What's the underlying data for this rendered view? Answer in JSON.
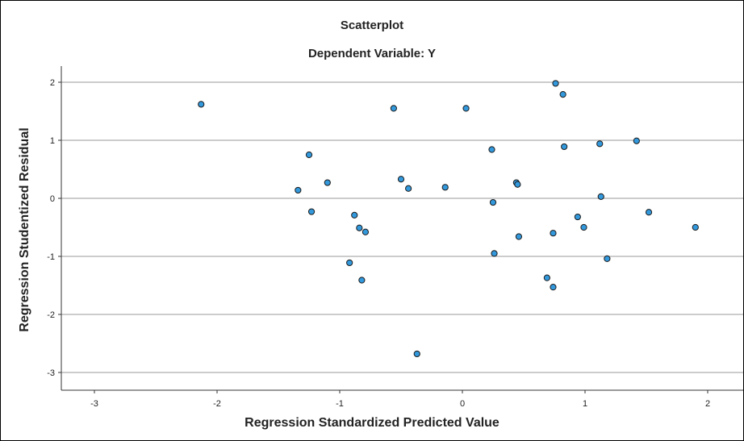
{
  "chart_data": {
    "type": "scatter",
    "title": "Scatterplot",
    "subtitle": "Dependent Variable: Y",
    "xlabel": "Regression Standardized Predicted Value",
    "ylabel": "Regression Studentized Residual",
    "xlim": [
      -3.6,
      2.3
    ],
    "ylim": [
      -3.3,
      2.3
    ],
    "xticks": [
      -3,
      -2,
      -1,
      0,
      1,
      2
    ],
    "yticks": [
      -3,
      -2,
      -1,
      0,
      1,
      2
    ],
    "grid": "horizontal",
    "legend": "none",
    "point_color": "#3399dd",
    "point_edge_color": "#1a1a1a",
    "points": [
      {
        "x": -2.13,
        "y": 1.62
      },
      {
        "x": -1.34,
        "y": 0.14
      },
      {
        "x": -1.25,
        "y": 0.75
      },
      {
        "x": -1.23,
        "y": -0.23
      },
      {
        "x": -1.1,
        "y": 0.27
      },
      {
        "x": -0.92,
        "y": -1.11
      },
      {
        "x": -0.88,
        "y": -0.29
      },
      {
        "x": -0.84,
        "y": -0.51
      },
      {
        "x": -0.82,
        "y": -1.41
      },
      {
        "x": -0.79,
        "y": -0.58
      },
      {
        "x": -0.56,
        "y": 1.55
      },
      {
        "x": -0.5,
        "y": 0.33
      },
      {
        "x": -0.44,
        "y": 0.17
      },
      {
        "x": -0.37,
        "y": -2.68
      },
      {
        "x": -0.14,
        "y": 0.19
      },
      {
        "x": 0.03,
        "y": 1.55
      },
      {
        "x": 0.24,
        "y": 0.84
      },
      {
        "x": 0.25,
        "y": -0.07
      },
      {
        "x": 0.26,
        "y": -0.95
      },
      {
        "x": 0.44,
        "y": 0.27
      },
      {
        "x": 0.45,
        "y": 0.24
      },
      {
        "x": 0.46,
        "y": -0.66
      },
      {
        "x": 0.69,
        "y": -1.37
      },
      {
        "x": 0.74,
        "y": -0.6
      },
      {
        "x": 0.74,
        "y": -1.53
      },
      {
        "x": 0.76,
        "y": 1.98
      },
      {
        "x": 0.82,
        "y": 1.79
      },
      {
        "x": 0.83,
        "y": 0.89
      },
      {
        "x": 0.94,
        "y": -0.32
      },
      {
        "x": 0.99,
        "y": -0.5
      },
      {
        "x": 1.12,
        "y": 0.94
      },
      {
        "x": 1.13,
        "y": 0.03
      },
      {
        "x": 1.18,
        "y": -1.04
      },
      {
        "x": 1.42,
        "y": 0.99
      },
      {
        "x": 1.52,
        "y": -0.24
      },
      {
        "x": 1.9,
        "y": -0.5
      }
    ]
  }
}
